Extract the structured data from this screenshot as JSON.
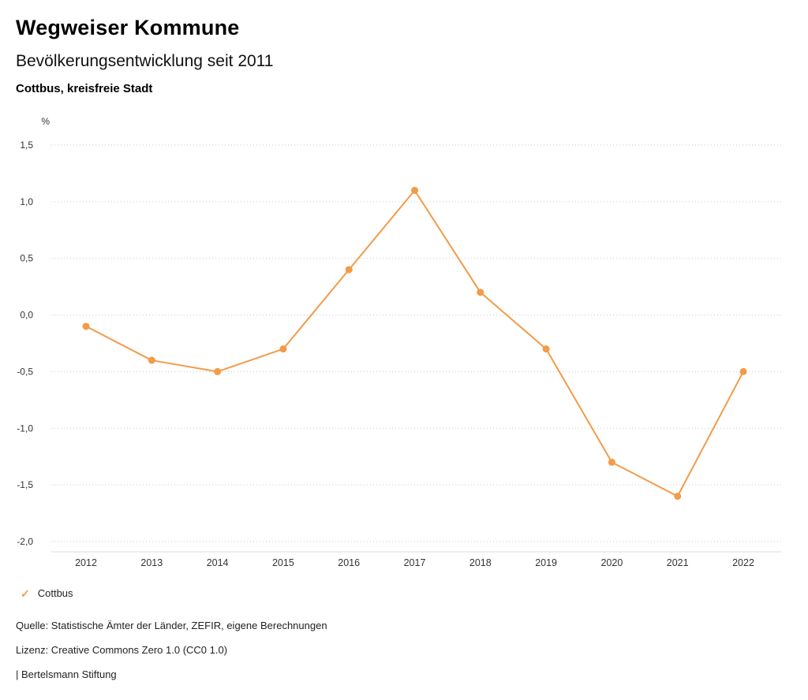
{
  "header": {
    "brand": "Wegweiser Kommune",
    "title": "Bevölkerungsentwicklung seit 2011",
    "region": "Cottbus, kreisfreie Stadt"
  },
  "chart_data": {
    "type": "line",
    "title": "Bevölkerungsentwicklung seit 2011",
    "subtitle": "Cottbus, kreisfreie Stadt",
    "unit_label": "%",
    "x": [
      2012,
      2013,
      2014,
      2015,
      2016,
      2017,
      2018,
      2019,
      2020,
      2021,
      2022
    ],
    "series": [
      {
        "name": "Cottbus",
        "values": [
          -0.1,
          -0.4,
          -0.5,
          -0.3,
          0.4,
          1.1,
          0.2,
          -0.3,
          -1.3,
          -1.6,
          -0.5
        ]
      }
    ],
    "ylim": [
      -2.0,
      1.5
    ],
    "yticks": [
      {
        "value": 1.5,
        "label": "1,5"
      },
      {
        "value": 1.0,
        "label": "1,0"
      },
      {
        "value": 0.5,
        "label": "0,5"
      },
      {
        "value": 0.0,
        "label": "0,0"
      },
      {
        "value": -0.5,
        "label": "-0,5"
      },
      {
        "value": -1.0,
        "label": "-1,0"
      },
      {
        "value": -1.5,
        "label": "-1,5"
      },
      {
        "value": -2.0,
        "label": "-2,0"
      }
    ],
    "grid": "dotted-horizontal",
    "legend_position": "bottom-left",
    "colors": {
      "line": "#F29B48",
      "dot": "#F29B48",
      "grid": "#c9c9c9",
      "baseline": "#d9d9d9",
      "axis_text": "#333333"
    }
  },
  "legend": {
    "items": [
      {
        "label": "Cottbus",
        "marker": "check-icon",
        "color": "#F29B48"
      }
    ]
  },
  "footer": {
    "source": "Quelle: Statistische Ämter der Länder, ZEFIR, eigene Berechnungen",
    "license": "Lizenz: Creative Commons Zero 1.0 (CC0 1.0)",
    "attribution": "| Bertelsmann Stiftung"
  }
}
